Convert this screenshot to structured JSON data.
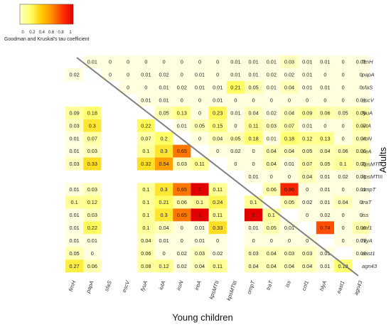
{
  "chart_data": {
    "type": "heatmap",
    "genes": [
      "fimH",
      "papA",
      "sfaS",
      "escV",
      "fyuA",
      "iutA",
      "iroN",
      "ireA",
      "kpsMTII",
      "kpsMTIII",
      "ompT",
      "traT",
      "iss",
      "cnf1",
      "hlyA",
      "east1",
      "agn43"
    ],
    "row_labels": [
      {
        "name": "fimH"
      },
      {
        "name": "papA"
      },
      {
        "name": "sfaS"
      },
      {
        "name": "escV"
      },
      {
        "name": "fyuA"
      },
      {
        "name": "iutA"
      },
      {
        "name": "iroN"
      },
      {
        "name": "ireA"
      },
      {
        "name": "kpsMT",
        "suffix": "II"
      },
      {
        "name": "kpsMT",
        "suffix": "III"
      },
      {
        "name": "ompT"
      },
      {
        "name": "traT"
      },
      {
        "name": "iss"
      },
      {
        "name": "cnf1"
      },
      {
        "name": "hlyA"
      },
      {
        "name": "east1"
      },
      {
        "name": "agn43"
      }
    ],
    "col_labels": [
      {
        "name": "fimH"
      },
      {
        "name": "papA"
      },
      {
        "name": "sfaS"
      },
      {
        "name": "escV"
      },
      {
        "name": "fyuA"
      },
      {
        "name": "iutA"
      },
      {
        "name": "iroN"
      },
      {
        "name": "ireA"
      },
      {
        "name": "kpsMT",
        "suffix": "II"
      },
      {
        "name": "kpsMT",
        "suffix": "III"
      },
      {
        "name": "ompT"
      },
      {
        "name": "traT"
      },
      {
        "name": "iss"
      },
      {
        "name": "cnf1"
      },
      {
        "name": "hlyA"
      },
      {
        "name": "east1"
      },
      {
        "name": "agn43"
      }
    ],
    "cells": [
      [
        null,
        "0.01",
        "0",
        "0",
        "0",
        "0",
        "0",
        "0",
        "0",
        "0.01",
        "0.01",
        "0.01",
        "0.03",
        "0.01",
        "0.01",
        "0",
        "0.01"
      ],
      [
        "0.02",
        null,
        "0",
        "0",
        "0.01",
        "0.02",
        "0",
        "0.01",
        "0",
        "0.01",
        "0.01",
        "0.02",
        "0.02",
        "0.01",
        "0",
        "0",
        "0"
      ],
      [
        null,
        null,
        null,
        "0",
        "0",
        "0.01",
        "0.02",
        "0.01",
        "0.01",
        "0.21",
        "0.05",
        "0.01",
        "0.04",
        "0.01",
        "0.01",
        "0",
        "0"
      ],
      [
        null,
        null,
        null,
        null,
        "0.01",
        "0.01",
        "0",
        "0",
        "0.01",
        "0",
        "0",
        "0",
        "0",
        "0",
        "0",
        "0",
        "0.01"
      ],
      [
        "0.09",
        "0.18",
        null,
        null,
        null,
        "0.05",
        "0.13",
        "0",
        "0.23",
        "0.01",
        "0.04",
        "0.02",
        "0.04",
        "0.09",
        "0.06",
        "0.05",
        "0.06"
      ],
      [
        "0.03",
        "0.3",
        null,
        null,
        "0.22",
        null,
        "0.01",
        "0.05",
        "0.15",
        "0",
        "0.11",
        "0.03",
        "0.07",
        "0.01",
        "0",
        "0",
        "0.07"
      ],
      [
        "0.01",
        "0.07",
        null,
        null,
        "0.07",
        "0.2",
        null,
        "0",
        "0.04",
        "0.05",
        "0.18",
        "0.01",
        "0.18",
        "0.12",
        "0.13",
        "0",
        "0.04"
      ],
      [
        "0.01",
        "0.03",
        null,
        null,
        "0.1",
        "0.3",
        "0.65",
        null,
        "0",
        "0.02",
        "0",
        "0.04",
        "0.04",
        "0.05",
        "0.04",
        "0.06",
        "0.06"
      ],
      [
        "0.03",
        "0.33",
        null,
        null,
        "0.32",
        "0.54",
        "0.03",
        "0.11",
        null,
        "0",
        "0",
        "0.04",
        "0.01",
        "0.07",
        "0.05",
        "0.1",
        "0.05"
      ],
      [
        null,
        null,
        null,
        null,
        null,
        null,
        null,
        null,
        null,
        null,
        "0.01",
        "0",
        "0",
        "0.04",
        "0.01",
        "0.02",
        "0.01"
      ],
      [
        "0.01",
        "0.03",
        null,
        null,
        "0.1",
        "0.3",
        "0.65",
        "1",
        "0.11",
        null,
        null,
        "0.06",
        "0.86",
        "0",
        "0.01",
        "0",
        "0.01"
      ],
      [
        "0.1",
        "0.12",
        null,
        null,
        "0.1",
        "0.21",
        "0.06",
        "0.1",
        "0.24",
        null,
        "0.1",
        null,
        "0.05",
        "0.02",
        "0.01",
        "0.04",
        "0"
      ],
      [
        "0.01",
        "0.03",
        null,
        null,
        "0.1",
        "0.3",
        "0.65",
        "1",
        "0.11",
        null,
        "1",
        "0.1",
        null,
        "0",
        "0.02",
        "0",
        "0"
      ],
      [
        "0.01",
        "0.22",
        null,
        null,
        "0.1",
        "0.04",
        "0",
        "0.01",
        "0.33",
        null,
        "0.01",
        "0.05",
        "0.01",
        null,
        "0.74",
        "0",
        "0.06"
      ],
      [
        "0.01",
        "0.01",
        null,
        null,
        "0.04",
        "0.01",
        "0",
        "0.01",
        "0",
        null,
        "0",
        "0",
        "0",
        "0",
        null,
        "0",
        "0.01"
      ],
      [
        "0.05",
        "0",
        null,
        null,
        "0.06",
        "0",
        "0.02",
        "0.03",
        "0.02",
        null,
        "0.03",
        "0.04",
        "0.03",
        "0.03",
        "0.01",
        null,
        "0.02"
      ],
      [
        "0.27",
        "0.06",
        null,
        null,
        "0.08",
        "0.12",
        "0.02",
        "0.04",
        "0.11",
        null,
        "0.04",
        "0.04",
        "0.04",
        "0.04",
        "0.01",
        "0.18",
        null
      ]
    ],
    "xlabel": "Young children",
    "ylabel": "Adults",
    "legend": {
      "title": "Goodman and Kruskal's tau  coefficient",
      "ticks": [
        "0",
        "0.2",
        "0.4",
        "0.6",
        "0.8",
        "1"
      ],
      "range": [
        0,
        1
      ],
      "colors": [
        "#ffffcc",
        "#ffff66",
        "#ffcc00",
        "#ff8c00",
        "#ff3300",
        "#e00000"
      ]
    },
    "diagonal_line_color": "#808080",
    "cell_background": "#ffffe0"
  }
}
